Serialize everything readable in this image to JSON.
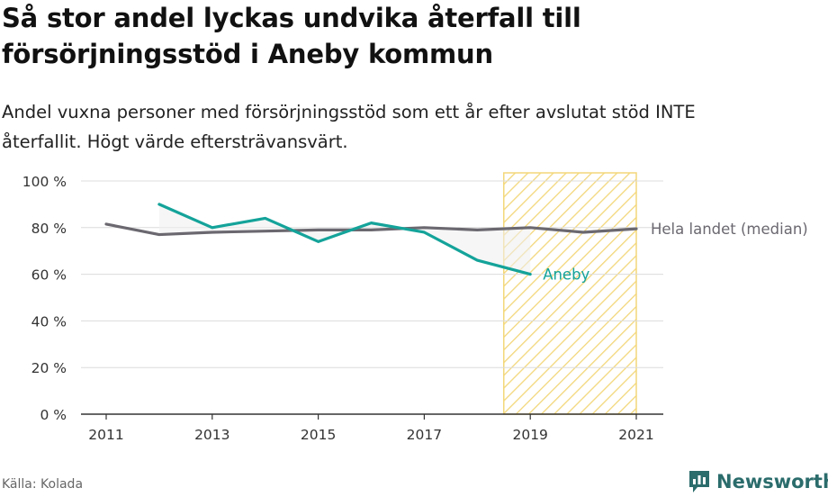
{
  "header": {
    "title_line1": "Så stor andel lyckas undvika återfall till",
    "title_line2": "försörjningsstöd i Aneby kommun",
    "subtitle_line1": "Andel vuxna personer med försörjningsstöd som ett år efter avslutat stöd INTE",
    "subtitle_line2": "återfallit. Högt värde eftersträvansvärt."
  },
  "footer": {
    "source": "Källa: Kolada",
    "brand": "Newsworthy"
  },
  "chart_data": {
    "type": "line",
    "x_ticks": [
      2011,
      2013,
      2015,
      2017,
      2019,
      2021
    ],
    "x_tick_labels": [
      "2011",
      "2013",
      "2015",
      "2017",
      "2019",
      "2021"
    ],
    "xlim": [
      2011,
      2021
    ],
    "ylim": [
      0,
      100
    ],
    "y_ticks": [
      0,
      20,
      40,
      60,
      80,
      100
    ],
    "y_tick_labels": [
      "0 %",
      "20 %",
      "40 %",
      "60 %",
      "80 %",
      "100 %"
    ],
    "grid": true,
    "highlight_region": {
      "from": 2018.5,
      "to": 2021,
      "pattern": "hatched",
      "color": "#f3d77a"
    },
    "series": [
      {
        "name": "Hela landet (median)",
        "color": "#6b6870",
        "x": [
          2011,
          2012,
          2013,
          2014,
          2015,
          2016,
          2017,
          2018,
          2019,
          2020,
          2021
        ],
        "values": [
          81.5,
          77,
          78,
          78.5,
          79,
          79,
          80,
          79,
          80,
          78,
          79.5
        ]
      },
      {
        "name": "Aneby",
        "color": "#14a39a",
        "x": [
          2012,
          2013,
          2014,
          2015,
          2016,
          2017,
          2018,
          2019
        ],
        "values": [
          90,
          80,
          84,
          74,
          82,
          78,
          66,
          60
        ]
      }
    ]
  }
}
